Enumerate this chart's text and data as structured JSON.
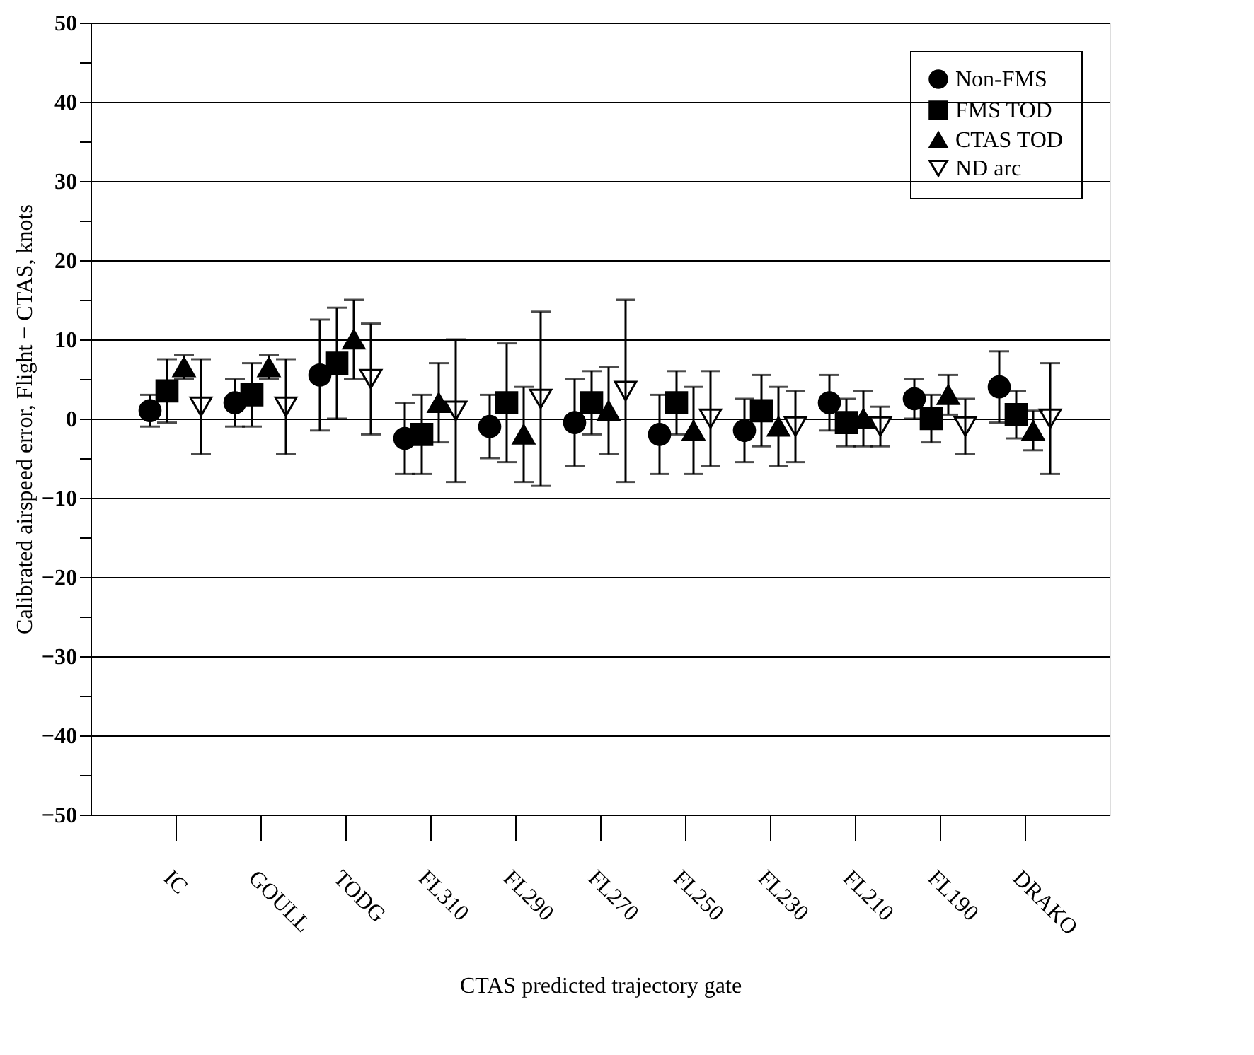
{
  "chart_data": {
    "type": "scatter",
    "xlabel": "CTAS predicted trajectory gate",
    "ylabel": "Calibrated airspeed error, Flight − CTAS, knots",
    "categories": [
      "IC",
      "GOULL",
      "TODG",
      "FL310",
      "FL290",
      "FL270",
      "FL250",
      "FL230",
      "FL210",
      "FL190",
      "DRAKO"
    ],
    "series": [
      {
        "name": "Non-FMS",
        "color": "#000000",
        "marker": "circle",
        "values": [
          1,
          2,
          5.5,
          -2.5,
          -1,
          -0.5,
          -2,
          -1.5,
          2,
          2.5,
          4
        ],
        "errors": [
          2,
          3,
          7,
          4.5,
          4,
          5.5,
          5,
          4,
          3.5,
          2.5,
          4.5
        ]
      },
      {
        "name": "FMS TOD",
        "color": "#000000",
        "marker": "square",
        "values": [
          3.5,
          3,
          7,
          -2,
          2,
          2,
          2,
          1,
          -0.5,
          0,
          0.5
        ],
        "errors": [
          4,
          4,
          7,
          5,
          7.5,
          4,
          4,
          4.5,
          3,
          3,
          3
        ]
      },
      {
        "name": "CTAS TOD",
        "color": "#000000",
        "marker": "triangle",
        "values": [
          6.5,
          6.5,
          10,
          2,
          -2,
          1,
          -1.5,
          -1,
          0,
          3,
          -1.5
        ],
        "errors": [
          1.5,
          1.5,
          5,
          5,
          6,
          5.5,
          5.5,
          5,
          3.5,
          2.5,
          2.5
        ]
      },
      {
        "name": "ND arc",
        "color": "#000000",
        "marker": "triangle-down-open",
        "values": [
          1.5,
          1.5,
          5,
          1,
          2.5,
          3.5,
          0,
          -1,
          -1,
          -1,
          0
        ],
        "errors": [
          6,
          6,
          7,
          9,
          11,
          11.5,
          6,
          4.5,
          2.5,
          3.5,
          7
        ]
      }
    ],
    "ylim": [
      -50,
      50
    ],
    "yticks": [
      -50,
      {
        "value": -45,
        "label": null
      },
      -40,
      {
        "value": -35,
        "label": null
      },
      -30,
      {
        "value": -25,
        "label": null
      },
      -20,
      {
        "value": -15,
        "label": null
      },
      -10,
      {
        "value": -5,
        "label": null
      },
      0,
      {
        "value": 5,
        "label": null
      },
      10,
      {
        "value": 15,
        "label": null
      },
      20,
      {
        "value": 25,
        "label": null
      },
      30,
      {
        "value": 35,
        "label": null
      },
      40,
      {
        "value": 45,
        "label": null
      },
      50
    ],
    "grid": "y",
    "legend": "top right"
  }
}
